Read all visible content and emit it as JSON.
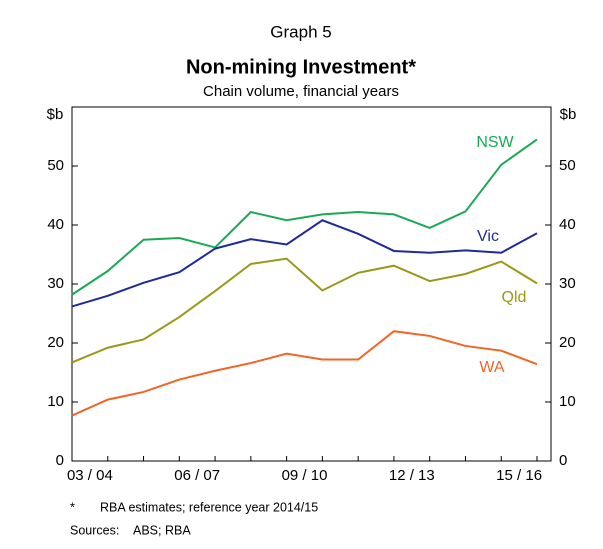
{
  "chart_data": {
    "type": "line",
    "graph_number": "Graph 5",
    "title": "Non-mining Investment*",
    "subtitle": "Chain volume, financial years",
    "y_unit": "$b",
    "categories": [
      null,
      "03 / 04",
      null,
      null,
      "06 / 07",
      null,
      null,
      "09 / 10",
      null,
      null,
      "12 / 13",
      null,
      null,
      "15 / 16"
    ],
    "series": [
      {
        "name": "NSW",
        "color": "#1aaa55",
        "values": [
          28.2,
          32.2,
          37.5,
          37.8,
          36.2,
          42.2,
          40.8,
          41.8,
          42.2,
          41.8,
          39.5,
          42.3,
          50.2,
          54.5
        ]
      },
      {
        "name": "Vic",
        "color": "#1f2a99",
        "values": [
          26.2,
          28.0,
          30.2,
          32.0,
          36.0,
          37.6,
          36.7,
          40.8,
          38.5,
          35.6,
          35.3,
          35.7,
          35.3,
          38.6
        ]
      },
      {
        "name": "Qld",
        "color": "#999918",
        "values": [
          16.7,
          19.2,
          20.6,
          24.4,
          28.8,
          33.4,
          34.3,
          28.9,
          31.9,
          33.1,
          30.5,
          31.7,
          33.8,
          30.1
        ]
      },
      {
        "name": "WA",
        "color": "#f26522",
        "values": [
          7.7,
          10.4,
          11.7,
          13.8,
          15.3,
          16.6,
          18.2,
          17.2,
          17.2,
          22.0,
          21.2,
          19.5,
          18.7,
          16.4
        ]
      }
    ],
    "ylim": [
      0,
      60
    ],
    "yticks": [
      0,
      10,
      20,
      30,
      40,
      50
    ],
    "notes": [
      [
        "*",
        "RBA estimates; reference year 2014/15"
      ],
      [
        "Sources:",
        "ABS; RBA"
      ]
    ]
  }
}
